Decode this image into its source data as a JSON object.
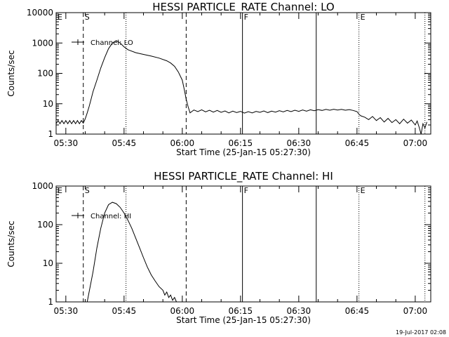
{
  "footer": "19-Jul-2017 02:08",
  "chart_data": [
    {
      "type": "line",
      "title": "HESSI PARTICLE_RATE Channel: LO",
      "xlabel": "Start Time (25-Jan-15 05:27:30)",
      "ylabel": "Counts/sec",
      "yscale": "log",
      "ylim": [
        1,
        10000
      ],
      "xlim": [
        "05:27:30",
        "07:04:00"
      ],
      "x_ticks": [
        "05:30",
        "05:45",
        "06:00",
        "06:15",
        "06:30",
        "06:45",
        "07:00"
      ],
      "y_ticks": [
        "1",
        "10",
        "100",
        "1000",
        "10000"
      ],
      "legend": {
        "label": "Channel: LO",
        "placement": "top-left"
      },
      "markers": [
        {
          "label": "E",
          "time": "05:27:30",
          "style": "dotted"
        },
        {
          "label": "S",
          "time": "05:34:30",
          "style": "dashed"
        },
        {
          "label": "",
          "time": "05:45:30",
          "style": "dotted"
        },
        {
          "label": "",
          "time": "06:01:00",
          "style": "dashed"
        },
        {
          "label": "F",
          "time": "06:15:30",
          "style": "solid"
        },
        {
          "label": "",
          "time": "06:34:30",
          "style": "solid"
        },
        {
          "label": "E",
          "time": "06:45:30",
          "style": "dotted"
        },
        {
          "label": "",
          "time": "07:02:30",
          "style": "dotted"
        }
      ],
      "series": [
        {
          "points": [
            [
              "05:27:30",
              2.2
            ],
            [
              "05:28:00",
              2.8
            ],
            [
              "05:28:30",
              2.2
            ],
            [
              "05:29:00",
              2.8
            ],
            [
              "05:29:30",
              2.2
            ],
            [
              "05:30:00",
              2.8
            ],
            [
              "05:30:30",
              2.2
            ],
            [
              "05:31:00",
              2.8
            ],
            [
              "05:31:30",
              2.2
            ],
            [
              "05:32:00",
              2.8
            ],
            [
              "05:32:30",
              2.2
            ],
            [
              "05:33:00",
              2.8
            ],
            [
              "05:33:30",
              2.2
            ],
            [
              "05:34:00",
              2.8
            ],
            [
              "05:34:30",
              2.3
            ],
            [
              "05:35:00",
              3.2
            ],
            [
              "05:35:30",
              5
            ],
            [
              "05:36:00",
              8
            ],
            [
              "05:36:30",
              14
            ],
            [
              "05:37:00",
              25
            ],
            [
              "05:38:00",
              60
            ],
            [
              "05:39:00",
              150
            ],
            [
              "05:40:00",
              330
            ],
            [
              "05:41:00",
              650
            ],
            [
              "05:42:00",
              1000
            ],
            [
              "05:43:00",
              1200
            ],
            [
              "05:44:00",
              1000
            ],
            [
              "05:45:00",
              750
            ],
            [
              "05:46:00",
              600
            ],
            [
              "05:48:00",
              480
            ],
            [
              "05:50:00",
              420
            ],
            [
              "05:52:00",
              370
            ],
            [
              "05:54:00",
              320
            ],
            [
              "05:56:00",
              260
            ],
            [
              "05:57:00",
              220
            ],
            [
              "05:58:00",
              170
            ],
            [
              "05:59:00",
              110
            ],
            [
              "06:00:00",
              60
            ],
            [
              "06:00:30",
              30
            ],
            [
              "06:01:00",
              14
            ],
            [
              "06:01:30",
              8
            ],
            [
              "06:02:00",
              5
            ],
            [
              "06:02:30",
              5.6
            ],
            [
              "06:03:00",
              6.2
            ],
            [
              "06:04:00",
              5.5
            ],
            [
              "06:05:00",
              6.3
            ],
            [
              "06:06:00",
              5.4
            ],
            [
              "06:07:00",
              6.1
            ],
            [
              "06:08:00",
              5.3
            ],
            [
              "06:09:00",
              6
            ],
            [
              "06:10:00",
              5.2
            ],
            [
              "06:11:00",
              5.8
            ],
            [
              "06:12:00",
              5
            ],
            [
              "06:13:00",
              5.7
            ],
            [
              "06:14:00",
              5.1
            ],
            [
              "06:15:00",
              5.6
            ],
            [
              "06:16:00",
              4.9
            ],
            [
              "06:17:00",
              5.5
            ],
            [
              "06:18:00",
              5
            ],
            [
              "06:19:00",
              5.6
            ],
            [
              "06:20:00",
              5.2
            ],
            [
              "06:21:00",
              5.8
            ],
            [
              "06:22:00",
              5.1
            ],
            [
              "06:23:00",
              5.7
            ],
            [
              "06:24:00",
              5.3
            ],
            [
              "06:25:00",
              5.9
            ],
            [
              "06:26:00",
              5.4
            ],
            [
              "06:27:00",
              6
            ],
            [
              "06:28:00",
              5.5
            ],
            [
              "06:29:00",
              6.1
            ],
            [
              "06:30:00",
              5.6
            ],
            [
              "06:31:00",
              6.2
            ],
            [
              "06:32:00",
              5.7
            ],
            [
              "06:33:00",
              6.3
            ],
            [
              "06:34:00",
              5.9
            ],
            [
              "06:35:00",
              6.4
            ],
            [
              "06:36:00",
              6
            ],
            [
              "06:37:00",
              6.5
            ],
            [
              "06:38:00",
              6.1
            ],
            [
              "06:39:00",
              6.6
            ],
            [
              "06:40:00",
              6.2
            ],
            [
              "06:41:00",
              6.5
            ],
            [
              "06:42:00",
              6.1
            ],
            [
              "06:43:00",
              6.4
            ],
            [
              "06:44:00",
              6
            ],
            [
              "06:45:00",
              5.5
            ],
            [
              "06:45:30",
              4.5
            ],
            [
              "06:46:00",
              4
            ],
            [
              "06:47:00",
              3.6
            ],
            [
              "06:48:00",
              3
            ],
            [
              "06:49:00",
              3.8
            ],
            [
              "06:50:00",
              2.8
            ],
            [
              "06:51:00",
              3.5
            ],
            [
              "06:52:00",
              2.5
            ],
            [
              "06:53:00",
              3.3
            ],
            [
              "06:54:00",
              2.4
            ],
            [
              "06:55:00",
              3
            ],
            [
              "06:56:00",
              2.2
            ],
            [
              "06:57:00",
              3.1
            ],
            [
              "06:58:00",
              2.3
            ],
            [
              "06:59:00",
              2.9
            ],
            [
              "07:00:00",
              2
            ],
            [
              "07:00:30",
              2.7
            ],
            [
              "07:01:00",
              1.7
            ],
            [
              "07:01:30",
              1
            ],
            [
              "07:02:00",
              2.2
            ],
            [
              "07:02:30",
              1.6
            ],
            [
              "07:03:00",
              2.5
            ]
          ]
        }
      ]
    },
    {
      "type": "line",
      "title": "HESSI PARTICLE_RATE Channel: HI",
      "xlabel": "Start Time (25-Jan-15 05:27:30)",
      "ylabel": "Counts/sec",
      "yscale": "log",
      "ylim": [
        1,
        1000
      ],
      "xlim": [
        "05:27:30",
        "07:04:00"
      ],
      "x_ticks": [
        "05:30",
        "05:45",
        "06:00",
        "06:15",
        "06:30",
        "06:45",
        "07:00"
      ],
      "y_ticks": [
        "1",
        "10",
        "100",
        "1000"
      ],
      "legend": {
        "label": "Channel: HI",
        "placement": "top-left"
      },
      "markers": [
        {
          "label": "E",
          "time": "05:27:30",
          "style": "dotted"
        },
        {
          "label": "S",
          "time": "05:34:30",
          "style": "dashed"
        },
        {
          "label": "",
          "time": "05:45:30",
          "style": "dotted"
        },
        {
          "label": "",
          "time": "06:01:00",
          "style": "dashed"
        },
        {
          "label": "F",
          "time": "06:15:30",
          "style": "solid"
        },
        {
          "label": "",
          "time": "06:34:30",
          "style": "solid"
        },
        {
          "label": "E",
          "time": "06:45:30",
          "style": "dotted"
        },
        {
          "label": "",
          "time": "07:02:30",
          "style": "dotted"
        }
      ],
      "series": [
        {
          "points": [
            [
              "05:35:30",
              1
            ],
            [
              "05:36:00",
              1.8
            ],
            [
              "05:37:00",
              6
            ],
            [
              "05:38:00",
              25
            ],
            [
              "05:39:00",
              80
            ],
            [
              "05:40:00",
              200
            ],
            [
              "05:41:00",
              330
            ],
            [
              "05:42:00",
              380
            ],
            [
              "05:43:00",
              350
            ],
            [
              "05:44:00",
              280
            ],
            [
              "05:45:00",
              200
            ],
            [
              "05:46:00",
              130
            ],
            [
              "05:47:00",
              80
            ],
            [
              "05:48:00",
              45
            ],
            [
              "05:49:00",
              25
            ],
            [
              "05:50:00",
              14
            ],
            [
              "05:51:00",
              8
            ],
            [
              "05:52:00",
              5
            ],
            [
              "05:53:00",
              3.5
            ],
            [
              "05:54:00",
              2.5
            ],
            [
              "05:55:00",
              2
            ],
            [
              "05:55:30",
              1.5
            ],
            [
              "05:56:00",
              1.8
            ],
            [
              "05:56:30",
              1.3
            ],
            [
              "05:57:00",
              1.5
            ],
            [
              "05:57:30",
              1.1
            ],
            [
              "05:58:00",
              1.3
            ],
            [
              "05:58:30",
              1
            ]
          ]
        }
      ]
    }
  ]
}
